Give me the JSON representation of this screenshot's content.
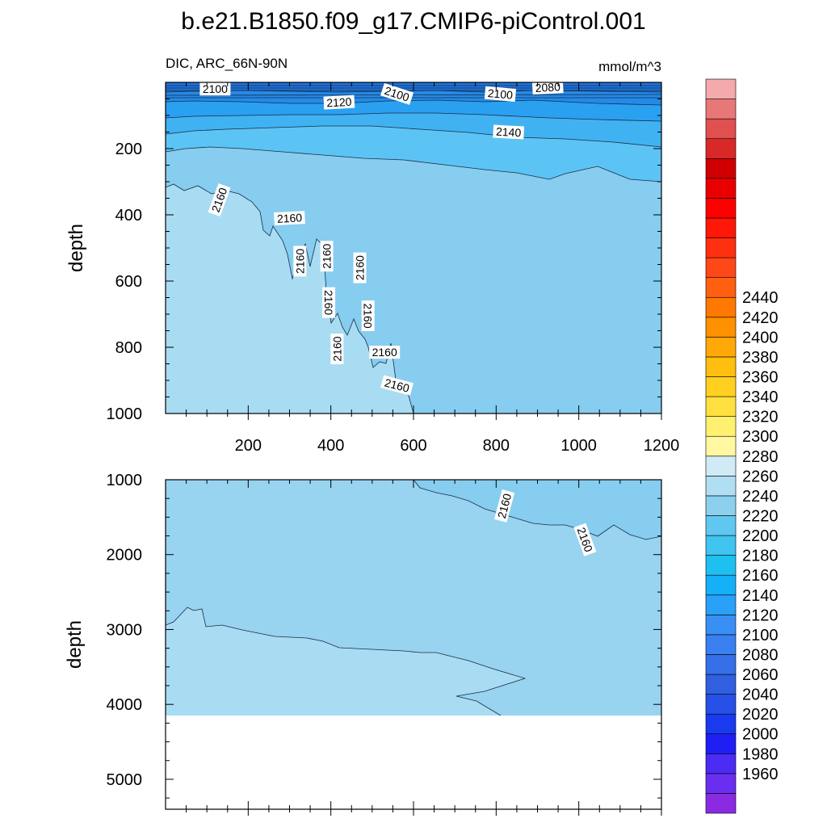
{
  "title": "b.e21.B1850.f09_g17.CMIP6-piControl.001",
  "chart_data": {
    "type": "contour",
    "variable_label": "DIC, ARC_66N-90N",
    "units": "mmol/m^3",
    "xlim": [
      0,
      1200
    ],
    "x_ticks": [
      200,
      400,
      600,
      800,
      1000,
      1200
    ],
    "panels": [
      {
        "name": "upper",
        "ylabel": "depth",
        "ylim": [
          0,
          1000
        ],
        "y_ticks": [
          200,
          400,
          600,
          800,
          1000
        ],
        "contour_labels": [
          {
            "text": "2100",
            "x": 120,
            "y": 20,
            "rot": 0
          },
          {
            "text": "2120",
            "x": 420,
            "y": 60,
            "rot": -3
          },
          {
            "text": "2100",
            "x": 560,
            "y": 35,
            "rot": 18
          },
          {
            "text": "2100",
            "x": 810,
            "y": 35,
            "rot": 5
          },
          {
            "text": "2080",
            "x": 925,
            "y": 15,
            "rot": -3
          },
          {
            "text": "2140",
            "x": 830,
            "y": 150,
            "rot": 3
          },
          {
            "text": "2160",
            "x": 130,
            "y": 355,
            "rot": -70
          },
          {
            "text": "2160",
            "x": 300,
            "y": 410,
            "rot": -3
          },
          {
            "text": "2160",
            "x": 325,
            "y": 540,
            "rot": -90
          },
          {
            "text": "2160",
            "x": 390,
            "y": 525,
            "rot": -90
          },
          {
            "text": "2160",
            "x": 470,
            "y": 560,
            "rot": -90
          },
          {
            "text": "2160",
            "x": 395,
            "y": 665,
            "rot": 90
          },
          {
            "text": "2160",
            "x": 490,
            "y": 705,
            "rot": 90
          },
          {
            "text": "2160",
            "x": 415,
            "y": 805,
            "rot": -90
          },
          {
            "text": "2160",
            "x": 530,
            "y": 815,
            "rot": 0
          },
          {
            "text": "2160",
            "x": 560,
            "y": 915,
            "rot": 15
          }
        ]
      },
      {
        "name": "lower",
        "ylabel": "depth",
        "ylim": [
          1000,
          5400
        ],
        "y_ticks": [
          1000,
          2000,
          3000,
          4000,
          5000
        ],
        "ocean_floor_depth": 4130,
        "contour_labels": [
          {
            "text": "2160",
            "x": 820,
            "y": 1350,
            "rot": -75
          },
          {
            "text": "2160",
            "x": 1015,
            "y": 1800,
            "rot": 70
          }
        ]
      }
    ],
    "colorbar": {
      "levels": [
        1960,
        1980,
        2000,
        2020,
        2040,
        2060,
        2080,
        2100,
        2120,
        2140,
        2160,
        2180,
        2200,
        2220,
        2240,
        2260,
        2280,
        2300,
        2320,
        2340,
        2360,
        2380,
        2400,
        2420,
        2440
      ],
      "colors": [
        "#8a2be2",
        "#6a2ef0",
        "#4a2cf5",
        "#1f1ff5",
        "#1a3af0",
        "#2650e8",
        "#3060e0",
        "#3570e8",
        "#3a80f0",
        "#3a8ff5",
        "#2aa0f8",
        "#14b0f8",
        "#1ec0f0",
        "#40c4f0",
        "#60c8f0",
        "#8cd0ee",
        "#b0def2",
        "#d0eaf6",
        "#fff8a0",
        "#fff070",
        "#ffe040",
        "#ffd020",
        "#ffbe10",
        "#ffa808",
        "#ff9000",
        "#ff7800",
        "#ff6010",
        "#ff4818",
        "#ff3010",
        "#ff1808",
        "#ff0000",
        "#e80000",
        "#d00000",
        "#d82828",
        "#e05050",
        "#e87878",
        "#f4aaaa"
      ]
    }
  }
}
